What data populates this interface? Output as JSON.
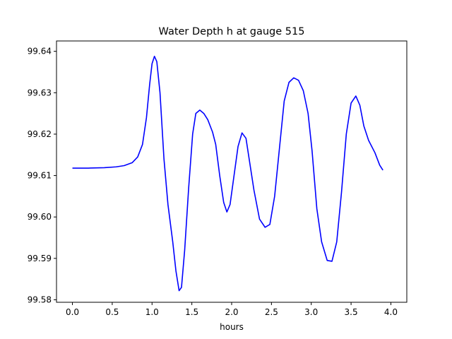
{
  "chart_data": {
    "type": "line",
    "title": "Water Depth h at gauge 515",
    "xlabel": "hours",
    "ylabel": "",
    "xlim": [
      -0.2,
      4.2
    ],
    "ylim": [
      99.5794,
      99.6425
    ],
    "xticks": [
      "0.0",
      "0.5",
      "1.0",
      "1.5",
      "2.0",
      "2.5",
      "3.0",
      "3.5",
      "4.0"
    ],
    "yticks": [
      "99.58",
      "99.59",
      "99.60",
      "99.61",
      "99.62",
      "99.63",
      "99.64"
    ],
    "grid": false,
    "legend": "none",
    "series": [
      {
        "color": "#0000ff",
        "points": [
          [
            0.0,
            99.6118
          ],
          [
            0.2,
            99.6118
          ],
          [
            0.4,
            99.6119
          ],
          [
            0.55,
            99.6121
          ],
          [
            0.65,
            99.6124
          ],
          [
            0.75,
            99.6131
          ],
          [
            0.82,
            99.6145
          ],
          [
            0.88,
            99.6175
          ],
          [
            0.93,
            99.624
          ],
          [
            0.97,
            99.632
          ],
          [
            1.0,
            99.637
          ],
          [
            1.03,
            99.6388
          ],
          [
            1.06,
            99.6375
          ],
          [
            1.1,
            99.63
          ],
          [
            1.15,
            99.614
          ],
          [
            1.2,
            99.603
          ],
          [
            1.26,
            99.594
          ],
          [
            1.3,
            99.587
          ],
          [
            1.34,
            99.5822
          ],
          [
            1.37,
            99.583
          ],
          [
            1.41,
            99.592
          ],
          [
            1.46,
            99.607
          ],
          [
            1.51,
            99.62
          ],
          [
            1.55,
            99.625
          ],
          [
            1.6,
            99.6258
          ],
          [
            1.65,
            99.625
          ],
          [
            1.7,
            99.6235
          ],
          [
            1.76,
            99.6205
          ],
          [
            1.8,
            99.6175
          ],
          [
            1.85,
            99.61
          ],
          [
            1.9,
            99.6035
          ],
          [
            1.94,
            99.6012
          ],
          [
            1.98,
            99.603
          ],
          [
            2.03,
            99.61
          ],
          [
            2.08,
            99.617
          ],
          [
            2.13,
            99.6203
          ],
          [
            2.18,
            99.619
          ],
          [
            2.22,
            99.614
          ],
          [
            2.28,
            99.6065
          ],
          [
            2.35,
            99.5995
          ],
          [
            2.42,
            99.5975
          ],
          [
            2.48,
            99.5982
          ],
          [
            2.54,
            99.605
          ],
          [
            2.6,
            99.6165
          ],
          [
            2.66,
            99.628
          ],
          [
            2.72,
            99.6325
          ],
          [
            2.78,
            99.6336
          ],
          [
            2.84,
            99.633
          ],
          [
            2.9,
            99.6305
          ],
          [
            2.96,
            99.625
          ],
          [
            3.01,
            99.616
          ],
          [
            3.07,
            99.602
          ],
          [
            3.13,
            99.594
          ],
          [
            3.2,
            99.5895
          ],
          [
            3.26,
            99.5893
          ],
          [
            3.32,
            99.594
          ],
          [
            3.38,
            99.606
          ],
          [
            3.44,
            99.62
          ],
          [
            3.5,
            99.6275
          ],
          [
            3.56,
            99.6292
          ],
          [
            3.61,
            99.627
          ],
          [
            3.66,
            99.622
          ],
          [
            3.72,
            99.6185
          ],
          [
            3.8,
            99.6155
          ],
          [
            3.86,
            99.6125
          ],
          [
            3.9,
            99.6113
          ]
        ]
      }
    ]
  }
}
